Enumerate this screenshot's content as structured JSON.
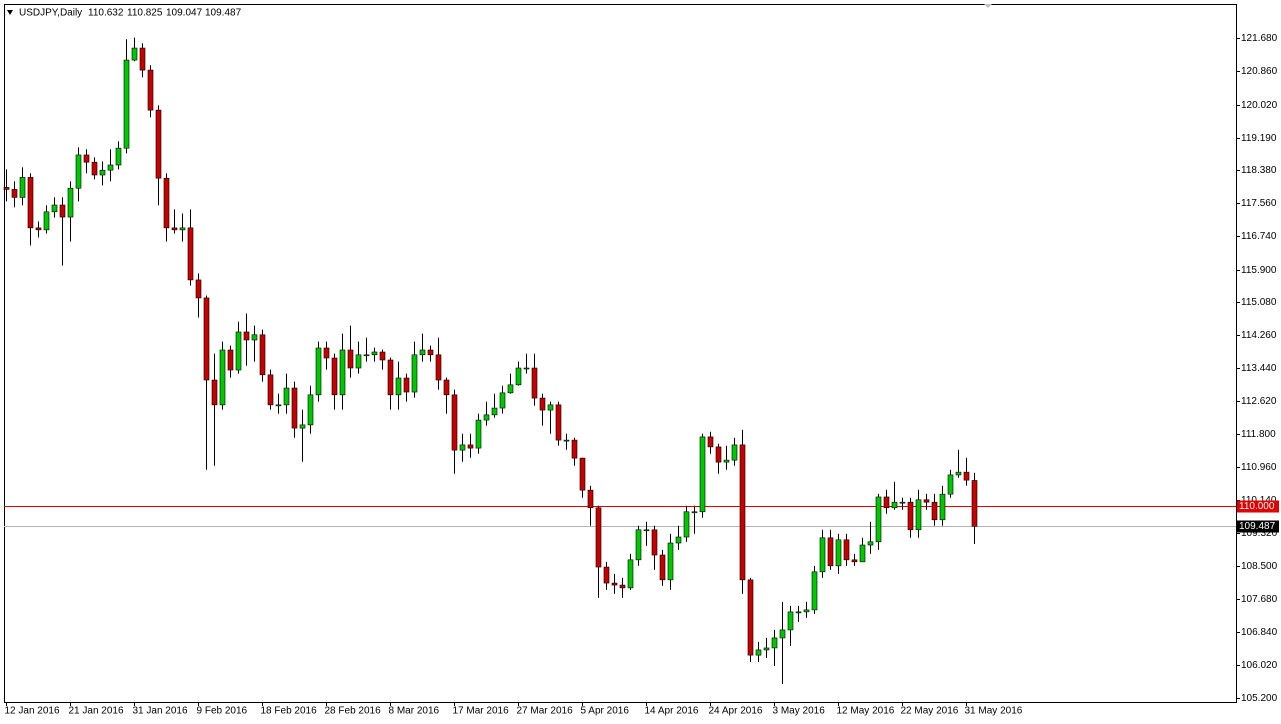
{
  "chart_data": {
    "type": "candlestick",
    "title": "USDJPY,Daily",
    "open": [
      117.95,
      117.9,
      117.7,
      118.2,
      116.94,
      116.89,
      117.34,
      117.51,
      117.21,
      117.93,
      118.76,
      118.58,
      118.26,
      118.38,
      118.51,
      118.93,
      121.13,
      121.43,
      120.88,
      119.88,
      118.18,
      116.94,
      116.89,
      116.94,
      115.64,
      115.19,
      113.14,
      112.52,
      113.89,
      113.39,
      114.34,
      114.14,
      114.27,
      113.27,
      112.52,
      112.52,
      112.94,
      111.94,
      112.02,
      112.77,
      113.94,
      113.69,
      112.77,
      113.89,
      113.44,
      113.77,
      113.77,
      113.84,
      113.64,
      112.77,
      113.19,
      112.84,
      113.77,
      113.89,
      113.77,
      113.14,
      112.77,
      111.39,
      111.52,
      111.44,
      112.14,
      112.27,
      112.44,
      112.82,
      113.02,
      113.44,
      113.44,
      112.69,
      112.39,
      112.52,
      111.64,
      111.64,
      111.19,
      110.39,
      109.95,
      108.47,
      108.07,
      108.02,
      107.95,
      108.65,
      109.4,
      109.4,
      108.77,
      108.15,
      109.07,
      109.22,
      109.85,
      109.85,
      111.72,
      111.47,
      111.09,
      111.14,
      111.52,
      108.15,
      106.27,
      106.4,
      106.45,
      106.7,
      106.9,
      107.35,
      107.35,
      107.4,
      108.35,
      109.2,
      108.5,
      109.15,
      108.65,
      108.6,
      109.02,
      109.1,
      110.22,
      109.95,
      110.09,
      110.09,
      109.4,
      110.15,
      110.09,
      109.65,
      110.29,
      110.77,
      110.84,
      110.632
    ],
    "high": [
      118.4,
      118.1,
      118.45,
      118.3,
      117.1,
      117.5,
      117.7,
      117.7,
      118.1,
      118.95,
      118.9,
      118.7,
      118.6,
      118.9,
      119.1,
      121.65,
      121.69,
      121.55,
      121.0,
      120.0,
      118.3,
      117.4,
      117.3,
      117.4,
      115.8,
      115.25,
      113.8,
      114.1,
      114.0,
      114.6,
      114.8,
      114.5,
      114.4,
      113.4,
      112.8,
      113.3,
      113.1,
      112.4,
      113.0,
      114.1,
      114.1,
      113.8,
      114.3,
      114.5,
      114.1,
      114.2,
      113.95,
      113.9,
      113.7,
      113.6,
      113.3,
      114.1,
      114.3,
      114.0,
      114.2,
      113.2,
      112.9,
      111.8,
      111.8,
      112.3,
      112.6,
      112.8,
      113.0,
      113.3,
      113.6,
      113.8,
      113.8,
      112.8,
      112.6,
      112.6,
      111.8,
      111.7,
      111.2,
      110.5,
      110.0,
      108.6,
      108.3,
      108.2,
      108.8,
      109.5,
      109.6,
      109.5,
      108.9,
      109.3,
      109.5,
      110.0,
      110.0,
      111.8,
      111.85,
      111.55,
      111.5,
      111.7,
      111.9,
      108.2,
      106.6,
      106.7,
      106.9,
      107.6,
      107.5,
      107.5,
      107.6,
      108.5,
      109.4,
      109.4,
      109.3,
      109.3,
      108.8,
      109.2,
      109.6,
      110.3,
      110.4,
      110.6,
      110.2,
      110.2,
      110.4,
      110.3,
      110.3,
      110.5,
      110.9,
      111.4,
      111.2,
      110.825
    ],
    "low": [
      117.6,
      117.45,
      117.5,
      116.5,
      116.7,
      116.8,
      117.2,
      116.0,
      116.6,
      117.6,
      118.3,
      118.15,
      118.0,
      118.1,
      118.4,
      118.8,
      121.1,
      120.7,
      119.7,
      117.5,
      116.6,
      116.8,
      116.6,
      115.5,
      114.7,
      110.9,
      111.0,
      112.4,
      113.2,
      113.3,
      113.5,
      113.6,
      113.1,
      112.4,
      112.3,
      112.3,
      111.7,
      111.1,
      111.8,
      112.6,
      113.4,
      112.4,
      112.4,
      113.2,
      113.3,
      113.6,
      113.6,
      113.4,
      112.4,
      112.4,
      112.6,
      112.7,
      113.6,
      113.6,
      112.9,
      112.3,
      110.8,
      111.1,
      111.2,
      111.3,
      112.0,
      112.2,
      112.3,
      112.8,
      113.0,
      113.3,
      112.5,
      112.0,
      111.8,
      111.5,
      111.4,
      111.0,
      110.2,
      109.5,
      107.7,
      107.9,
      107.8,
      107.7,
      107.9,
      108.5,
      109.0,
      108.4,
      108.0,
      107.9,
      108.9,
      109.1,
      109.3,
      109.7,
      111.3,
      110.8,
      110.9,
      111.0,
      107.8,
      106.1,
      106.1,
      106.2,
      106.0,
      105.55,
      106.5,
      107.1,
      107.2,
      107.3,
      108.2,
      108.4,
      108.3,
      108.5,
      108.5,
      108.6,
      108.8,
      108.9,
      109.8,
      109.9,
      109.9,
      109.2,
      109.2,
      109.9,
      109.5,
      109.5,
      110.2,
      110.7,
      110.5,
      109.047
    ],
    "close": [
      117.9,
      117.7,
      118.2,
      116.94,
      116.89,
      117.34,
      117.51,
      117.21,
      117.93,
      118.76,
      118.58,
      118.26,
      118.38,
      118.51,
      118.93,
      121.13,
      121.43,
      120.88,
      119.88,
      118.18,
      116.94,
      116.89,
      116.94,
      115.64,
      115.19,
      113.14,
      112.52,
      113.89,
      113.39,
      114.34,
      114.14,
      114.27,
      113.27,
      112.52,
      112.52,
      112.94,
      111.94,
      112.02,
      112.77,
      113.94,
      113.69,
      112.77,
      113.89,
      113.44,
      113.77,
      113.77,
      113.84,
      113.64,
      112.77,
      113.19,
      112.84,
      113.77,
      113.89,
      113.77,
      113.14,
      112.77,
      111.39,
      111.52,
      111.44,
      112.14,
      112.27,
      112.44,
      112.82,
      113.02,
      113.44,
      113.44,
      112.69,
      112.39,
      112.52,
      111.64,
      111.64,
      111.19,
      110.39,
      109.95,
      108.47,
      108.07,
      108.02,
      107.95,
      108.65,
      109.4,
      109.4,
      108.77,
      108.15,
      109.07,
      109.22,
      109.85,
      109.85,
      111.72,
      111.47,
      111.09,
      111.14,
      111.52,
      108.15,
      106.27,
      106.4,
      106.45,
      106.7,
      106.9,
      107.35,
      107.35,
      107.4,
      108.35,
      109.2,
      108.5,
      109.15,
      108.65,
      108.6,
      109.02,
      109.1,
      110.22,
      109.95,
      110.09,
      110.09,
      109.4,
      110.15,
      110.09,
      109.65,
      110.29,
      110.77,
      110.84,
      110.64,
      109.487
    ],
    "up_color": "#00c800",
    "down_color": "#c80000",
    "ylim": [
      105.1,
      122.53
    ],
    "yticks": [
      {
        "value": 121.68,
        "label": "121.680"
      },
      {
        "value": 120.86,
        "label": "120.860"
      },
      {
        "value": 120.02,
        "label": "120.020"
      },
      {
        "value": 119.19,
        "label": "119.190"
      },
      {
        "value": 118.38,
        "label": "118.380"
      },
      {
        "value": 117.56,
        "label": "117.560"
      },
      {
        "value": 116.74,
        "label": "116.740"
      },
      {
        "value": 115.9,
        "label": "115.900"
      },
      {
        "value": 115.08,
        "label": "115.080"
      },
      {
        "value": 114.26,
        "label": "114.260"
      },
      {
        "value": 113.44,
        "label": "113.440"
      },
      {
        "value": 112.62,
        "label": "112.620"
      },
      {
        "value": 111.8,
        "label": "111.800"
      },
      {
        "value": 110.96,
        "label": "110.960"
      },
      {
        "value": 110.14,
        "label": "110.140"
      },
      {
        "value": 109.32,
        "label": "109.320"
      },
      {
        "value": 108.5,
        "label": "108.500"
      },
      {
        "value": 107.68,
        "label": "107.680"
      },
      {
        "value": 106.84,
        "label": "106.840"
      },
      {
        "value": 106.02,
        "label": "106.020"
      },
      {
        "value": 105.2,
        "label": "105.200"
      }
    ],
    "xticks": [
      {
        "value": 0,
        "label": "12 Jan 2016"
      },
      {
        "value": 8,
        "label": "21 Jan 2016"
      },
      {
        "value": 16,
        "label": "31 Jan 2016"
      },
      {
        "value": 24,
        "label": "9 Feb 2016"
      },
      {
        "value": 32,
        "label": "18 Feb 2016"
      },
      {
        "value": 40,
        "label": "28 Feb 2016"
      },
      {
        "value": 48,
        "label": "8 Mar 2016"
      },
      {
        "value": 56,
        "label": "17 Mar 2016"
      },
      {
        "value": 64,
        "label": "27 Mar 2016"
      },
      {
        "value": 72,
        "label": "5 Apr 2016"
      },
      {
        "value": 80,
        "label": "14 Apr 2016"
      },
      {
        "value": 88,
        "label": "24 Apr 2016"
      },
      {
        "value": 96,
        "label": "3 May 2016"
      },
      {
        "value": 104,
        "label": "12 May 2016"
      },
      {
        "value": 112,
        "label": "22 May 2016"
      },
      {
        "value": 120,
        "label": "31 May 2016"
      }
    ],
    "hlines": [
      {
        "value": 110,
        "label": "110.000",
        "color": "#e00000",
        "box": "#e00000"
      },
      {
        "value": 109.487,
        "label": "109.487",
        "color": "#b4b4b4",
        "box": "#000000"
      }
    ]
  }
}
